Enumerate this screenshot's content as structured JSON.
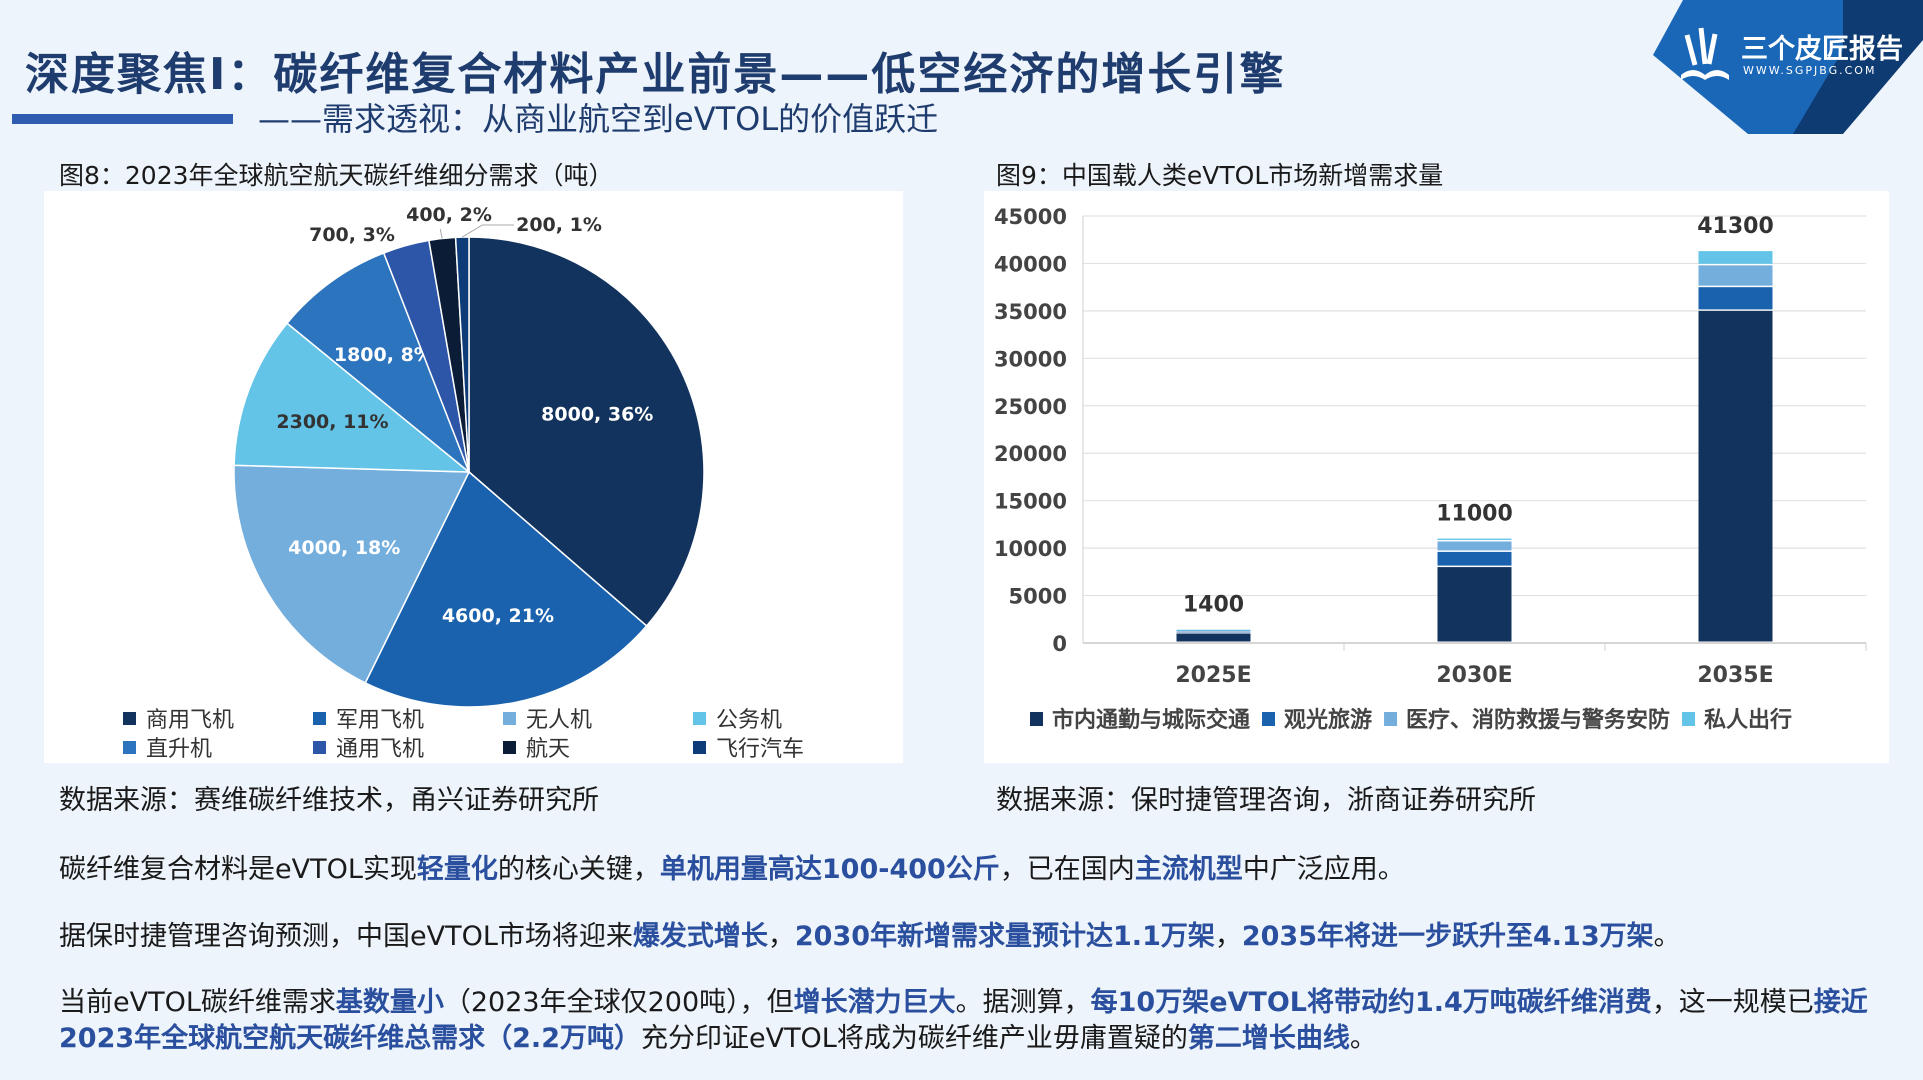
{
  "header": {
    "title": "深度聚焦I：碳纤维复合材料产业前景——低空经济的增长引擎",
    "subtitle": "——需求透视：从商业航空到eVTOL的价值跃迁"
  },
  "logo": {
    "name": "三个皮匠报告",
    "url_text": "WWW.SGPJBG.COM"
  },
  "colors": {
    "title": "#1f3c6e",
    "highlight": "#2a4f9e",
    "accent_bar": "#2f5bb0",
    "background": "#eef4fb"
  },
  "chart_data": [
    {
      "type": "pie",
      "title": "图8：2023年全球航空航天碳纤维细分需求（吨）",
      "legend_position": "bottom",
      "slices": [
        {
          "name": "商用飞机",
          "value": 8000,
          "percent": "36%",
          "label": "8000, 36%",
          "color": "#12335e"
        },
        {
          "name": "军用飞机",
          "value": 4600,
          "percent": "21%",
          "label": "4600, 21%",
          "color": "#1a62ad"
        },
        {
          "name": "无人机",
          "value": 4000,
          "percent": "18%",
          "label": "4000, 18%",
          "color": "#74aedd"
        },
        {
          "name": "公务机",
          "value": 2300,
          "percent": "11%",
          "label": "2300, 11%",
          "color": "#63c4e8"
        },
        {
          "name": "直升机",
          "value": 1800,
          "percent": "8%",
          "label": "1800, 8%",
          "color": "#2c74bd"
        },
        {
          "name": "通用飞机",
          "value": 700,
          "percent": "3%",
          "label": "700, 3%",
          "color": "#2d55a8"
        },
        {
          "name": "航天",
          "value": 400,
          "percent": "2%",
          "label": "400, 2%",
          "color": "#0b1d36"
        },
        {
          "name": "飞行汽车",
          "value": 200,
          "percent": "1%",
          "label": "200, 1%",
          "color": "#0d3c78"
        }
      ],
      "source": "数据来源：赛维碳纤维技术，甬兴证券研究所"
    },
    {
      "type": "bar",
      "stacked": true,
      "title": "图9：中国载人类eVTOL市场新增需求量",
      "categories": [
        "2025E",
        "2030E",
        "2035E"
      ],
      "totals": [
        1400,
        11000,
        41300
      ],
      "total_labels": [
        "1400",
        "11000",
        "41300"
      ],
      "ylim": [
        0,
        45000
      ],
      "yticks": [
        "0",
        "5000",
        "10000",
        "15000",
        "20000",
        "25000",
        "30000",
        "35000",
        "40000",
        "45000"
      ],
      "grid": true,
      "legend_position": "bottom",
      "series": [
        {
          "name": "市内通勤与城际交通",
          "values": [
            1000,
            8000,
            35000
          ],
          "color": "#12335e"
        },
        {
          "name": "观光旅游",
          "values": [
            200,
            1600,
            2500
          ],
          "color": "#1a62ad"
        },
        {
          "name": "医疗、消防救援与警务安防",
          "values": [
            150,
            1100,
            2300
          ],
          "color": "#74aedd"
        },
        {
          "name": "私人出行",
          "values": [
            50,
            300,
            1500
          ],
          "color": "#63c4e8"
        }
      ],
      "source": "数据来源：保时捷管理咨询，浙商证券研究所"
    }
  ],
  "paragraphs": [
    [
      {
        "t": "碳纤维复合材料是eVTOL实现",
        "hl": false
      },
      {
        "t": "轻量化",
        "hl": true
      },
      {
        "t": "的核心关键，",
        "hl": false
      },
      {
        "t": "单机用量高达100-400公斤",
        "hl": true
      },
      {
        "t": "，已在国内",
        "hl": false
      },
      {
        "t": "主流机型",
        "hl": true
      },
      {
        "t": "中广泛应用。",
        "hl": false
      }
    ],
    [
      {
        "t": "据保时捷管理咨询预测，中国eVTOL市场将迎来",
        "hl": false
      },
      {
        "t": "爆发式增长",
        "hl": true
      },
      {
        "t": "，",
        "hl": false
      },
      {
        "t": "2030年新增需求量预计达1.1万架",
        "hl": true
      },
      {
        "t": "，",
        "hl": false
      },
      {
        "t": "2035年将进一步跃升至4.13万架",
        "hl": true
      },
      {
        "t": "。",
        "hl": false
      }
    ],
    [
      {
        "t": "当前eVTOL碳纤维需求",
        "hl": false
      },
      {
        "t": "基数量小",
        "hl": true
      },
      {
        "t": "（2023年全球仅200吨），但",
        "hl": false
      },
      {
        "t": "增长潜力巨大",
        "hl": true
      },
      {
        "t": "。据测算，",
        "hl": false
      },
      {
        "t": "每10万架eVTOL将带动约1.4万吨碳纤维消费",
        "hl": true
      },
      {
        "t": "，这一规模已",
        "hl": false
      },
      {
        "t": "接近2023年全球航空航天碳纤维总需求（2.2万吨）",
        "hl": true
      },
      {
        "t": "充分印证eVTOL将成为碳纤维产业毋庸置疑的",
        "hl": false
      },
      {
        "t": "第二增长曲线",
        "hl": true
      },
      {
        "t": "。",
        "hl": false
      }
    ]
  ]
}
